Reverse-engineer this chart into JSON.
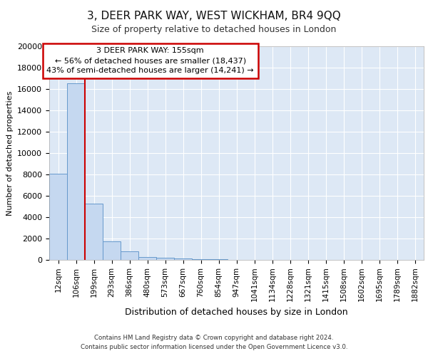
{
  "title": "3, DEER PARK WAY, WEST WICKHAM, BR4 9QQ",
  "subtitle": "Size of property relative to detached houses in London",
  "xlabel": "Distribution of detached houses by size in London",
  "ylabel": "Number of detached properties",
  "categories": [
    "12sqm",
    "106sqm",
    "199sqm",
    "293sqm",
    "386sqm",
    "480sqm",
    "573sqm",
    "667sqm",
    "760sqm",
    "854sqm",
    "947sqm",
    "1041sqm",
    "1134sqm",
    "1228sqm",
    "1321sqm",
    "1415sqm",
    "1508sqm",
    "1602sqm",
    "1695sqm",
    "1789sqm",
    "1882sqm"
  ],
  "bar_heights": [
    8100,
    16500,
    5300,
    1750,
    800,
    300,
    200,
    150,
    100,
    50,
    0,
    0,
    0,
    0,
    0,
    0,
    0,
    0,
    0,
    0,
    0
  ],
  "bar_color": "#c5d8f0",
  "bar_edge_color": "#6699cc",
  "background_color": "#dde8f5",
  "annotation_title": "3 DEER PARK WAY: 155sqm",
  "annotation_line1": "← 56% of detached houses are smaller (18,437)",
  "annotation_line2": "43% of semi-detached houses are larger (14,241) →",
  "annotation_box_facecolor": "#ffffff",
  "annotation_border_color": "#cc0000",
  "red_line_color": "#cc0000",
  "ylim": [
    0,
    20000
  ],
  "yticks": [
    0,
    2000,
    4000,
    6000,
    8000,
    10000,
    12000,
    14000,
    16000,
    18000,
    20000
  ],
  "footer_line1": "Contains HM Land Registry data © Crown copyright and database right 2024.",
  "footer_line2": "Contains public sector information licensed under the Open Government Licence v3.0.",
  "title_fontsize": 11,
  "subtitle_fontsize": 9,
  "ylabel_fontsize": 8,
  "xlabel_fontsize": 9,
  "tick_fontsize": 7.5,
  "ytick_fontsize": 8
}
